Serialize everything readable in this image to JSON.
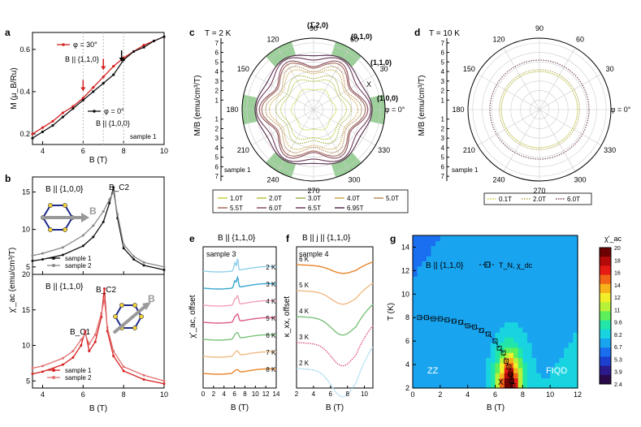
{
  "chart_data": [
    {
      "panel": "a",
      "type": "line",
      "xlabel": "B (T)",
      "ylabel": "M (μ_B/Ru)",
      "xlim": [
        3.5,
        10
      ],
      "ylim": [
        0.15,
        0.68
      ],
      "xticks": [
        4,
        6,
        8,
        10
      ],
      "yticks": [
        0.2,
        0.4,
        0.6
      ],
      "note": "sample 1",
      "annotations": [
        "φ = 30°",
        "B || {1,1,0}",
        "φ = 0°",
        "B || {1,0,0}"
      ],
      "arrow_positions_B": [
        6.0,
        7.0,
        7.9
      ],
      "series": [
        {
          "name": "φ = 30°, B || {1,1,0}",
          "color": "#d62020",
          "x": [
            3.5,
            4,
            4.5,
            5,
            5.5,
            6,
            6.5,
            7,
            7.5,
            8,
            8.5,
            9,
            9.5,
            10
          ],
          "y": [
            0.2,
            0.23,
            0.26,
            0.3,
            0.33,
            0.37,
            0.42,
            0.47,
            0.52,
            0.56,
            0.59,
            0.62,
            0.64,
            0.66
          ]
        },
        {
          "name": "φ = 0°, B || {1,0,0}",
          "color": "#111111",
          "x": [
            3.5,
            4,
            4.5,
            5,
            5.5,
            6,
            6.5,
            7,
            7.5,
            8,
            8.5,
            9,
            9.5,
            10
          ],
          "y": [
            0.18,
            0.21,
            0.24,
            0.28,
            0.32,
            0.36,
            0.4,
            0.44,
            0.48,
            0.55,
            0.59,
            0.61,
            0.64,
            0.66
          ]
        }
      ]
    },
    {
      "panel": "b-top",
      "type": "line",
      "title": "B || {1,0,0}",
      "xlabel": "",
      "ylabel": "χ'_ac (emu/cm³/T)",
      "xlim": [
        3.5,
        10
      ],
      "ylim": [
        4,
        17
      ],
      "yticks": [
        5,
        10,
        15
      ],
      "peak_label": "B_C2",
      "series": [
        {
          "name": "sample 1",
          "color": "#111111",
          "x": [
            3.5,
            4,
            5,
            6,
            6.5,
            7,
            7.3,
            7.5,
            7.7,
            8,
            8.5,
            9,
            10
          ],
          "y": [
            5.8,
            6.0,
            6.6,
            7.8,
            9.0,
            11.0,
            13.5,
            15.6,
            11.5,
            7.5,
            6.0,
            5.2,
            4.6
          ]
        },
        {
          "name": "sample 2",
          "color": "#888888",
          "x": [
            3.5,
            4,
            5,
            6,
            6.5,
            7,
            7.3,
            7.5,
            7.7,
            8,
            8.5,
            9,
            10
          ],
          "y": [
            6.5,
            6.8,
            7.6,
            9.2,
            10.5,
            12.4,
            14.0,
            15.0,
            12.0,
            8.0,
            6.4,
            5.6,
            5.0
          ]
        }
      ]
    },
    {
      "panel": "b-bottom",
      "type": "line",
      "title": "B || {1,1,0}",
      "xlabel": "B (T)",
      "ylabel": "",
      "xlim": [
        3.5,
        10
      ],
      "ylim": [
        4,
        20
      ],
      "xticks": [
        4,
        6,
        8,
        10
      ],
      "yticks": [
        5,
        10,
        15,
        20
      ],
      "peak_labels": [
        "B_C1",
        "B_C2"
      ],
      "series": [
        {
          "name": "sample 1",
          "color": "#d62020",
          "x": [
            3.5,
            4,
            5,
            5.5,
            5.9,
            6.1,
            6.3,
            6.6,
            6.9,
            7.05,
            7.2,
            7.5,
            8,
            9,
            10
          ],
          "y": [
            6.0,
            6.3,
            7.3,
            8.3,
            10.0,
            12.0,
            9.2,
            10.5,
            14.0,
            18.0,
            12.0,
            8.5,
            6.4,
            5.2,
            4.6
          ]
        },
        {
          "name": "sample 2",
          "color": "#e07070",
          "x": [
            3.5,
            4,
            5,
            5.5,
            5.9,
            6.1,
            6.3,
            6.6,
            6.9,
            7.05,
            7.2,
            7.5,
            8,
            9,
            10
          ],
          "y": [
            6.8,
            7.1,
            8.2,
            9.2,
            10.8,
            11.6,
            10.2,
            11.5,
            14.5,
            16.5,
            12.5,
            9.2,
            7.0,
            5.8,
            5.0
          ]
        }
      ]
    },
    {
      "panel": "c",
      "type": "polar",
      "title": "T = 2 K",
      "ylabel": "M/B (emu/cm³/T)",
      "note": "sample 1",
      "radial_ticks": [
        1,
        2,
        3,
        4,
        5,
        6,
        7
      ],
      "angle_labels": [
        "90",
        "60",
        "30",
        "φ = 0°",
        "330",
        "300",
        "270",
        "240",
        "210",
        "180",
        "150",
        "120"
      ],
      "direction_labels": [
        "(1̄,2,0)",
        "(0,1,0)",
        "(1,1,0)",
        "(1,0,0)"
      ],
      "marker": "X",
      "legend": [
        "1.0T",
        "2.0T",
        "3.0T",
        "4.0T",
        "5.0T",
        "5.5T",
        "6.0T",
        "6.5T",
        "6.95T"
      ],
      "series": [
        {
          "name": "1.0T",
          "color": "#c8d23a",
          "base": 2.2,
          "amp": 0.15
        },
        {
          "name": "2.0T",
          "color": "#b7c23c",
          "base": 3.2,
          "amp": 0.25
        },
        {
          "name": "3.0T",
          "color": "#a5b04a",
          "base": 3.6,
          "amp": 0.35
        },
        {
          "name": "4.0T",
          "color": "#c9a84a",
          "base": 4.2,
          "amp": 0.45
        },
        {
          "name": "5.0T",
          "color": "#bf8f58",
          "base": 4.5,
          "amp": 0.55
        },
        {
          "name": "5.5T",
          "color": "#a36a5a",
          "base": 4.9,
          "amp": 0.55
        },
        {
          "name": "6.0T",
          "color": "#8a4e60",
          "base": 5.1,
          "amp": 0.6
        },
        {
          "name": "6.5T",
          "color": "#6e3a5a",
          "base": 5.6,
          "amp": 0.4
        },
        {
          "name": "6.95T",
          "color": "#532a4c",
          "base": 5.9,
          "amp": 0.25
        }
      ]
    },
    {
      "panel": "d",
      "type": "polar",
      "title": "T = 10 K",
      "ylabel": "M/B (emu/cm³/T)",
      "note": "sample 1",
      "radial_ticks": [
        1,
        2,
        3,
        4,
        5,
        6,
        7
      ],
      "angle_labels": [
        "90",
        "60",
        "30",
        "φ = 0°",
        "330",
        "300",
        "270",
        "240",
        "210",
        "180",
        "150",
        "120"
      ],
      "legend": [
        "0.1T",
        "2.0T",
        "6.0T"
      ],
      "series": [
        {
          "name": "0.1T",
          "color": "#c8d23a",
          "r": 4.0
        },
        {
          "name": "2.0T",
          "color": "#b9a85a",
          "r": 4.2
        },
        {
          "name": "6.0T",
          "color": "#6e3a5a",
          "r": 5.2
        }
      ]
    },
    {
      "panel": "e",
      "type": "line",
      "title": "B || {1,1,0}",
      "xlabel": "B (T)",
      "ylabel": "χ'_ac, offset",
      "note": "sample 3",
      "xlim": [
        0,
        14
      ],
      "xticks": [
        0,
        2,
        4,
        6,
        8,
        10,
        12,
        14
      ],
      "series": [
        {
          "name": "2 K",
          "color": "#8fd0ea"
        },
        {
          "name": "3 K",
          "color": "#39a6cf"
        },
        {
          "name": "4 K",
          "color": "#f2a0b8"
        },
        {
          "name": "5 K",
          "color": "#de5a86"
        },
        {
          "name": "6 K",
          "color": "#7cc27a"
        },
        {
          "name": "7 K",
          "color": "#f0bb85"
        },
        {
          "name": "8 K",
          "color": "#e8842b"
        }
      ]
    },
    {
      "panel": "f",
      "type": "line",
      "title": "B || j || {1,1,0}",
      "xlabel": "B (T)",
      "ylabel": "κ_xx, offset",
      "note": "sample 4",
      "xlim": [
        2,
        11
      ],
      "xticks": [
        2,
        4,
        6,
        8,
        10
      ],
      "series": [
        {
          "name": "6 K",
          "color": "#e8842b"
        },
        {
          "name": "5 K",
          "color": "#f0bb85"
        },
        {
          "name": "4 K",
          "color": "#7cc27a"
        },
        {
          "name": "3 K",
          "color": "#de5a86"
        },
        {
          "name": "2 K",
          "color": "#8fd0ea"
        }
      ]
    },
    {
      "panel": "g",
      "type": "heatmap",
      "title": "B || {1,1,0}",
      "xlabel": "B (T)",
      "ylabel": "T (K)",
      "xlim": [
        0,
        12
      ],
      "ylim": [
        2,
        15
      ],
      "xticks": [
        0,
        2,
        4,
        6,
        8,
        10,
        12
      ],
      "yticks": [
        2,
        4,
        6,
        8,
        10,
        12,
        14
      ],
      "region_labels": [
        "ZZ",
        "FIQD"
      ],
      "marker": "X",
      "colorbar_label": "χ'_ac",
      "colorbar_ticks": [
        "20",
        "18",
        "16",
        "14",
        "12",
        "11",
        "9.6",
        "8.2",
        "6.7",
        "5.3",
        "3.9",
        "2.4"
      ],
      "boundary_series": {
        "name": "T_N, χ_dc",
        "x": [
          0.5,
          1.0,
          1.5,
          2.0,
          2.5,
          3.0,
          3.5,
          4.0,
          4.5,
          5.0,
          5.5,
          6.0,
          6.3,
          6.6,
          6.8,
          7.0,
          7.1,
          7.2,
          7.3
        ],
        "y": [
          8.0,
          8.0,
          7.9,
          7.9,
          7.8,
          7.7,
          7.6,
          7.3,
          7.2,
          6.9,
          6.6,
          6.0,
          5.4,
          5.0,
          4.3,
          3.8,
          3.2,
          2.6,
          2.2
        ]
      }
    }
  ],
  "labels": {
    "a": "a",
    "b": "b",
    "c": "c",
    "d": "d",
    "e": "e",
    "f": "f",
    "g": "g"
  }
}
